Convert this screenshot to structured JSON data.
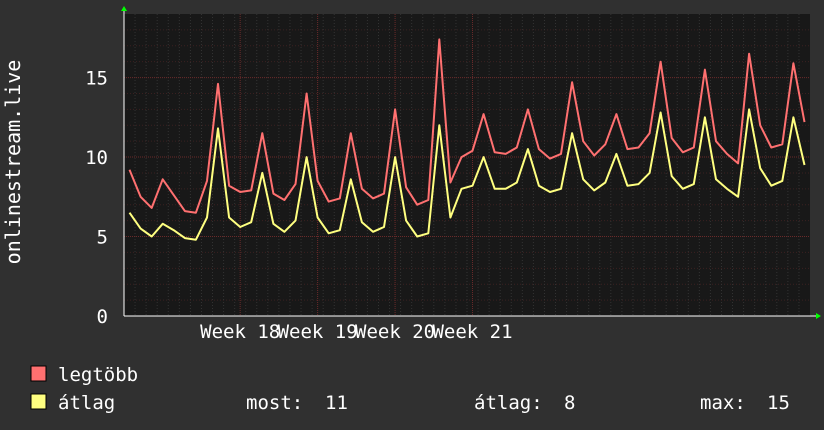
{
  "chart_data": {
    "type": "line",
    "ylabel": "onlinestream.live",
    "ylim": [
      0,
      19
    ],
    "yticks": [
      0,
      5,
      10,
      15
    ],
    "x_labels": [
      {
        "label": "Week 18",
        "week_index": 1.5
      },
      {
        "label": "Week 19",
        "week_index": 2.5
      },
      {
        "label": "Week 20",
        "week_index": 3.5
      },
      {
        "label": "Week 21",
        "week_index": 4.5
      }
    ],
    "grid": true,
    "background": "#181818",
    "series": [
      {
        "name": "legtöbb",
        "color": "#ff7070",
        "sample_interval_days": 1,
        "values": [
          9.2,
          7.5,
          6.8,
          8.6,
          7.6,
          6.6,
          6.5,
          8.5,
          14.6,
          8.2,
          7.8,
          7.9,
          11.5,
          7.7,
          7.3,
          8.3,
          14.0,
          8.5,
          7.2,
          7.4,
          11.5,
          8.0,
          7.4,
          7.7,
          13.0,
          8.1,
          7.0,
          7.3,
          17.4,
          8.4,
          10.0,
          10.4,
          12.7,
          10.3,
          10.2,
          10.6,
          13.0,
          10.5,
          9.9,
          10.2,
          14.7,
          11.0,
          10.1,
          10.8,
          12.7,
          10.5,
          10.6,
          11.5,
          16.0,
          11.2,
          10.3,
          10.6,
          15.5,
          11.0,
          10.2,
          9.6,
          16.5,
          12.0,
          10.6,
          10.8,
          15.9,
          12.2
        ]
      },
      {
        "name": "átlag",
        "color": "#ffff80",
        "sample_interval_days": 1,
        "values": [
          6.5,
          5.5,
          5.0,
          5.8,
          5.4,
          4.9,
          4.8,
          6.2,
          11.8,
          6.2,
          5.6,
          5.9,
          9.0,
          5.8,
          5.3,
          6.0,
          10.0,
          6.2,
          5.2,
          5.4,
          8.6,
          5.9,
          5.3,
          5.6,
          10.0,
          6.0,
          5.0,
          5.2,
          12.0,
          6.2,
          8.0,
          8.2,
          10.0,
          8.0,
          8.0,
          8.4,
          10.5,
          8.2,
          7.8,
          8.0,
          11.5,
          8.6,
          7.9,
          8.4,
          10.2,
          8.2,
          8.3,
          9.0,
          12.8,
          8.8,
          8.0,
          8.3,
          12.5,
          8.6,
          8.0,
          7.5,
          13.0,
          9.3,
          8.2,
          8.5,
          12.5,
          9.5
        ]
      }
    ]
  },
  "legend": {
    "items": [
      {
        "label": "legtöbb",
        "color": "#ff7070"
      },
      {
        "label": "átlag",
        "color": "#ffff80"
      }
    ],
    "stats": {
      "most_label": "most:",
      "most_value": "11",
      "avg_label": "átlag:",
      "avg_value": "8",
      "max_label": "max:",
      "max_value": "15"
    }
  }
}
